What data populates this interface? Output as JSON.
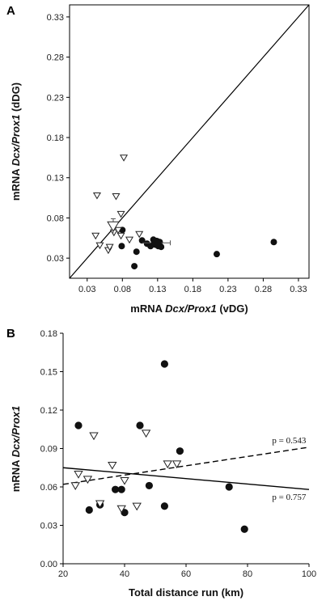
{
  "chart_data": [
    {
      "type": "scatter",
      "panel_label": "A",
      "xlabel_prefix": "mRNA ",
      "xlabel_italic": "Dcx/Prox1",
      "xlabel_suffix": " (vDG)",
      "ylabel_prefix": "mRNA ",
      "ylabel_italic": "Dcx/Prox1",
      "ylabel_suffix": " (dDG)",
      "xlim": [
        0.005,
        0.345
      ],
      "ylim": [
        0.005,
        0.345
      ],
      "xticks": [
        "0.03",
        "0.08",
        "0.13",
        "0.18",
        "0.23",
        "0.28",
        "0.33"
      ],
      "yticks": [
        "0.03",
        "0.08",
        "0.13",
        "0.18",
        "0.23",
        "0.28",
        "0.33"
      ],
      "identity_line": true,
      "series": [
        {
          "marker": "circle-filled",
          "points": [
            [
              0.08,
              0.065
            ],
            [
              0.079,
              0.045
            ],
            [
              0.097,
              0.02
            ],
            [
              0.1,
              0.038
            ],
            [
              0.108,
              0.052
            ],
            [
              0.115,
              0.048
            ],
            [
              0.12,
              0.045
            ],
            [
              0.124,
              0.053
            ],
            [
              0.127,
              0.047
            ],
            [
              0.131,
              0.045
            ],
            [
              0.133,
              0.05
            ],
            [
              0.135,
              0.044
            ],
            [
              0.214,
              0.035
            ],
            [
              0.295,
              0.05
            ]
          ]
        },
        {
          "marker": "triangle-down-open",
          "points": [
            [
              0.044,
              0.108
            ],
            [
              0.042,
              0.058
            ],
            [
              0.048,
              0.046
            ],
            [
              0.06,
              0.04
            ],
            [
              0.062,
              0.044
            ],
            [
              0.068,
              0.062
            ],
            [
              0.071,
              0.107
            ],
            [
              0.074,
              0.065
            ],
            [
              0.078,
              0.085
            ],
            [
              0.078,
              0.058
            ],
            [
              0.082,
              0.155
            ],
            [
              0.09,
              0.053
            ],
            [
              0.104,
              0.06
            ]
          ]
        }
      ],
      "mean_points": [
        {
          "marker": "circle-filled",
          "x": 0.128,
          "y": 0.049,
          "x_err": 0.02,
          "y_err": 0.004
        },
        {
          "marker": "triangle-down-open",
          "x": 0.067,
          "y": 0.07,
          "x_err": 0.004,
          "y_err": 0.009
        }
      ]
    },
    {
      "type": "scatter",
      "panel_label": "B",
      "xlabel": "Total distance run (km)",
      "ylabel_prefix": "mRNA ",
      "ylabel_italic": "Dcx/Prox1",
      "xlim": [
        20,
        100
      ],
      "ylim": [
        0,
        0.18
      ],
      "xticks": [
        "20",
        "40",
        "60",
        "80",
        "100"
      ],
      "yticks": [
        "0.00",
        "0.03",
        "0.06",
        "0.09",
        "0.12",
        "0.15",
        "0.18"
      ],
      "series": [
        {
          "marker": "circle-filled",
          "points": [
            [
              25,
              0.108
            ],
            [
              28.5,
              0.042
            ],
            [
              32,
              0.046
            ],
            [
              37,
              0.058
            ],
            [
              39,
              0.058
            ],
            [
              40,
              0.04
            ],
            [
              45,
              0.108
            ],
            [
              48,
              0.061
            ],
            [
              53,
              0.156
            ],
            [
              53,
              0.045
            ],
            [
              58,
              0.088
            ],
            [
              74,
              0.06
            ],
            [
              79,
              0.027
            ]
          ]
        },
        {
          "marker": "triangle-down-open",
          "points": [
            [
              24,
              0.061
            ],
            [
              25,
              0.07
            ],
            [
              28,
              0.066
            ],
            [
              30,
              0.1
            ],
            [
              32,
              0.047
            ],
            [
              36,
              0.077
            ],
            [
              39,
              0.043
            ],
            [
              40,
              0.065
            ],
            [
              44,
              0.045
            ],
            [
              47,
              0.102
            ],
            [
              54,
              0.078
            ],
            [
              57,
              0.078
            ]
          ]
        }
      ],
      "regression_lines": [
        {
          "style": "dashed",
          "x": [
            20,
            100
          ],
          "y": [
            0.062,
            0.091
          ],
          "label": "p = 0.543",
          "label_x": 88,
          "label_y": 0.094
        },
        {
          "style": "solid",
          "x": [
            20,
            100
          ],
          "y": [
            0.075,
            0.058
          ],
          "label": "p = 0.757",
          "label_x": 88,
          "label_y": 0.05
        }
      ]
    }
  ]
}
